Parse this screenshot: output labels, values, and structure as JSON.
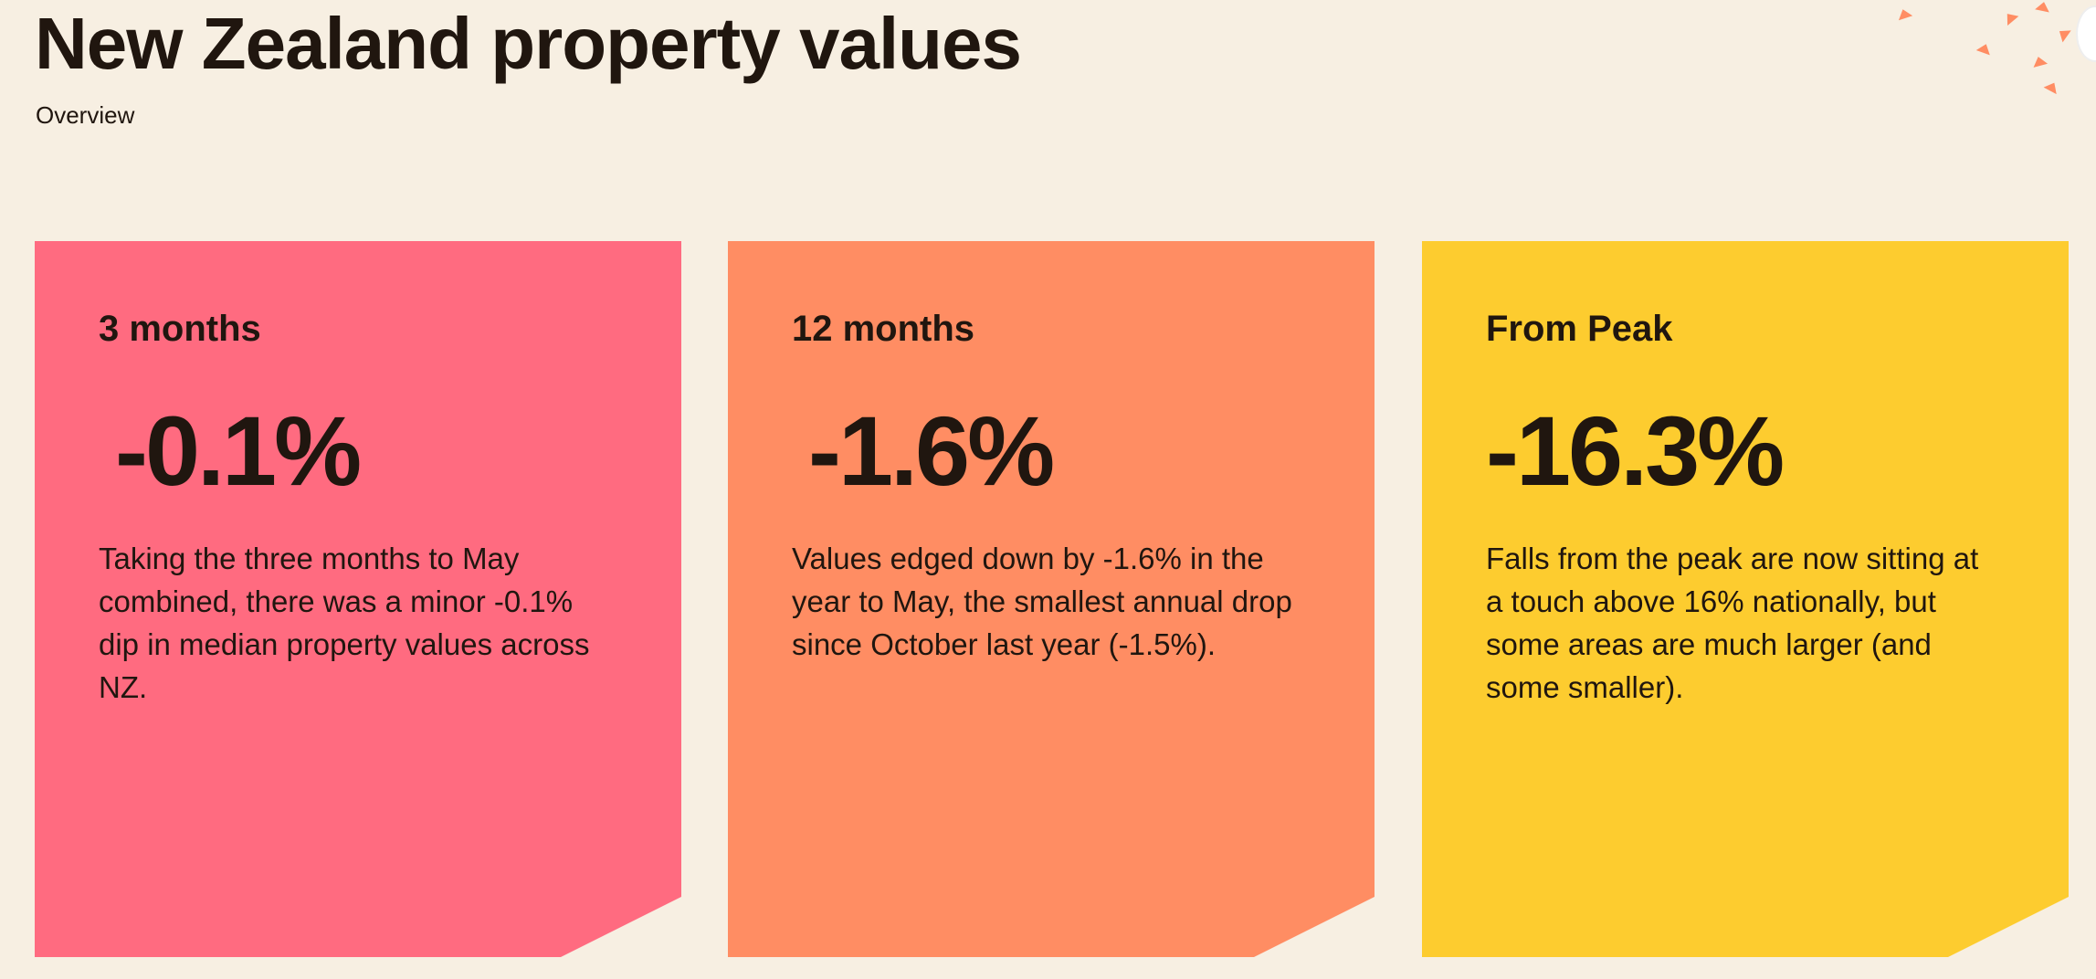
{
  "header": {
    "title": "New Zealand property values",
    "subtitle": "Overview"
  },
  "cards": [
    {
      "period": "3 months",
      "value": "-0.1%",
      "description": "Taking the three months to May combined, there was a minor -0.1% dip in median property values across NZ.",
      "color": "#ff6b80"
    },
    {
      "period": "12 months",
      "value": "-1.6%",
      "description": "Values edged down by -1.6% in the year to May, the smallest annual drop since October last year (-1.5%).",
      "color": "#ff8d63"
    },
    {
      "period": "From Peak",
      "value": "-16.3%",
      "description": "Falls from the peak are now sitting at a touch above 16% nationally, but some areas are much larger (and some smaller).",
      "color": "#fdcc2f"
    }
  ],
  "colors": {
    "background": "#f7efe2",
    "text": "#20160f",
    "confetti": "#ff8d63"
  }
}
